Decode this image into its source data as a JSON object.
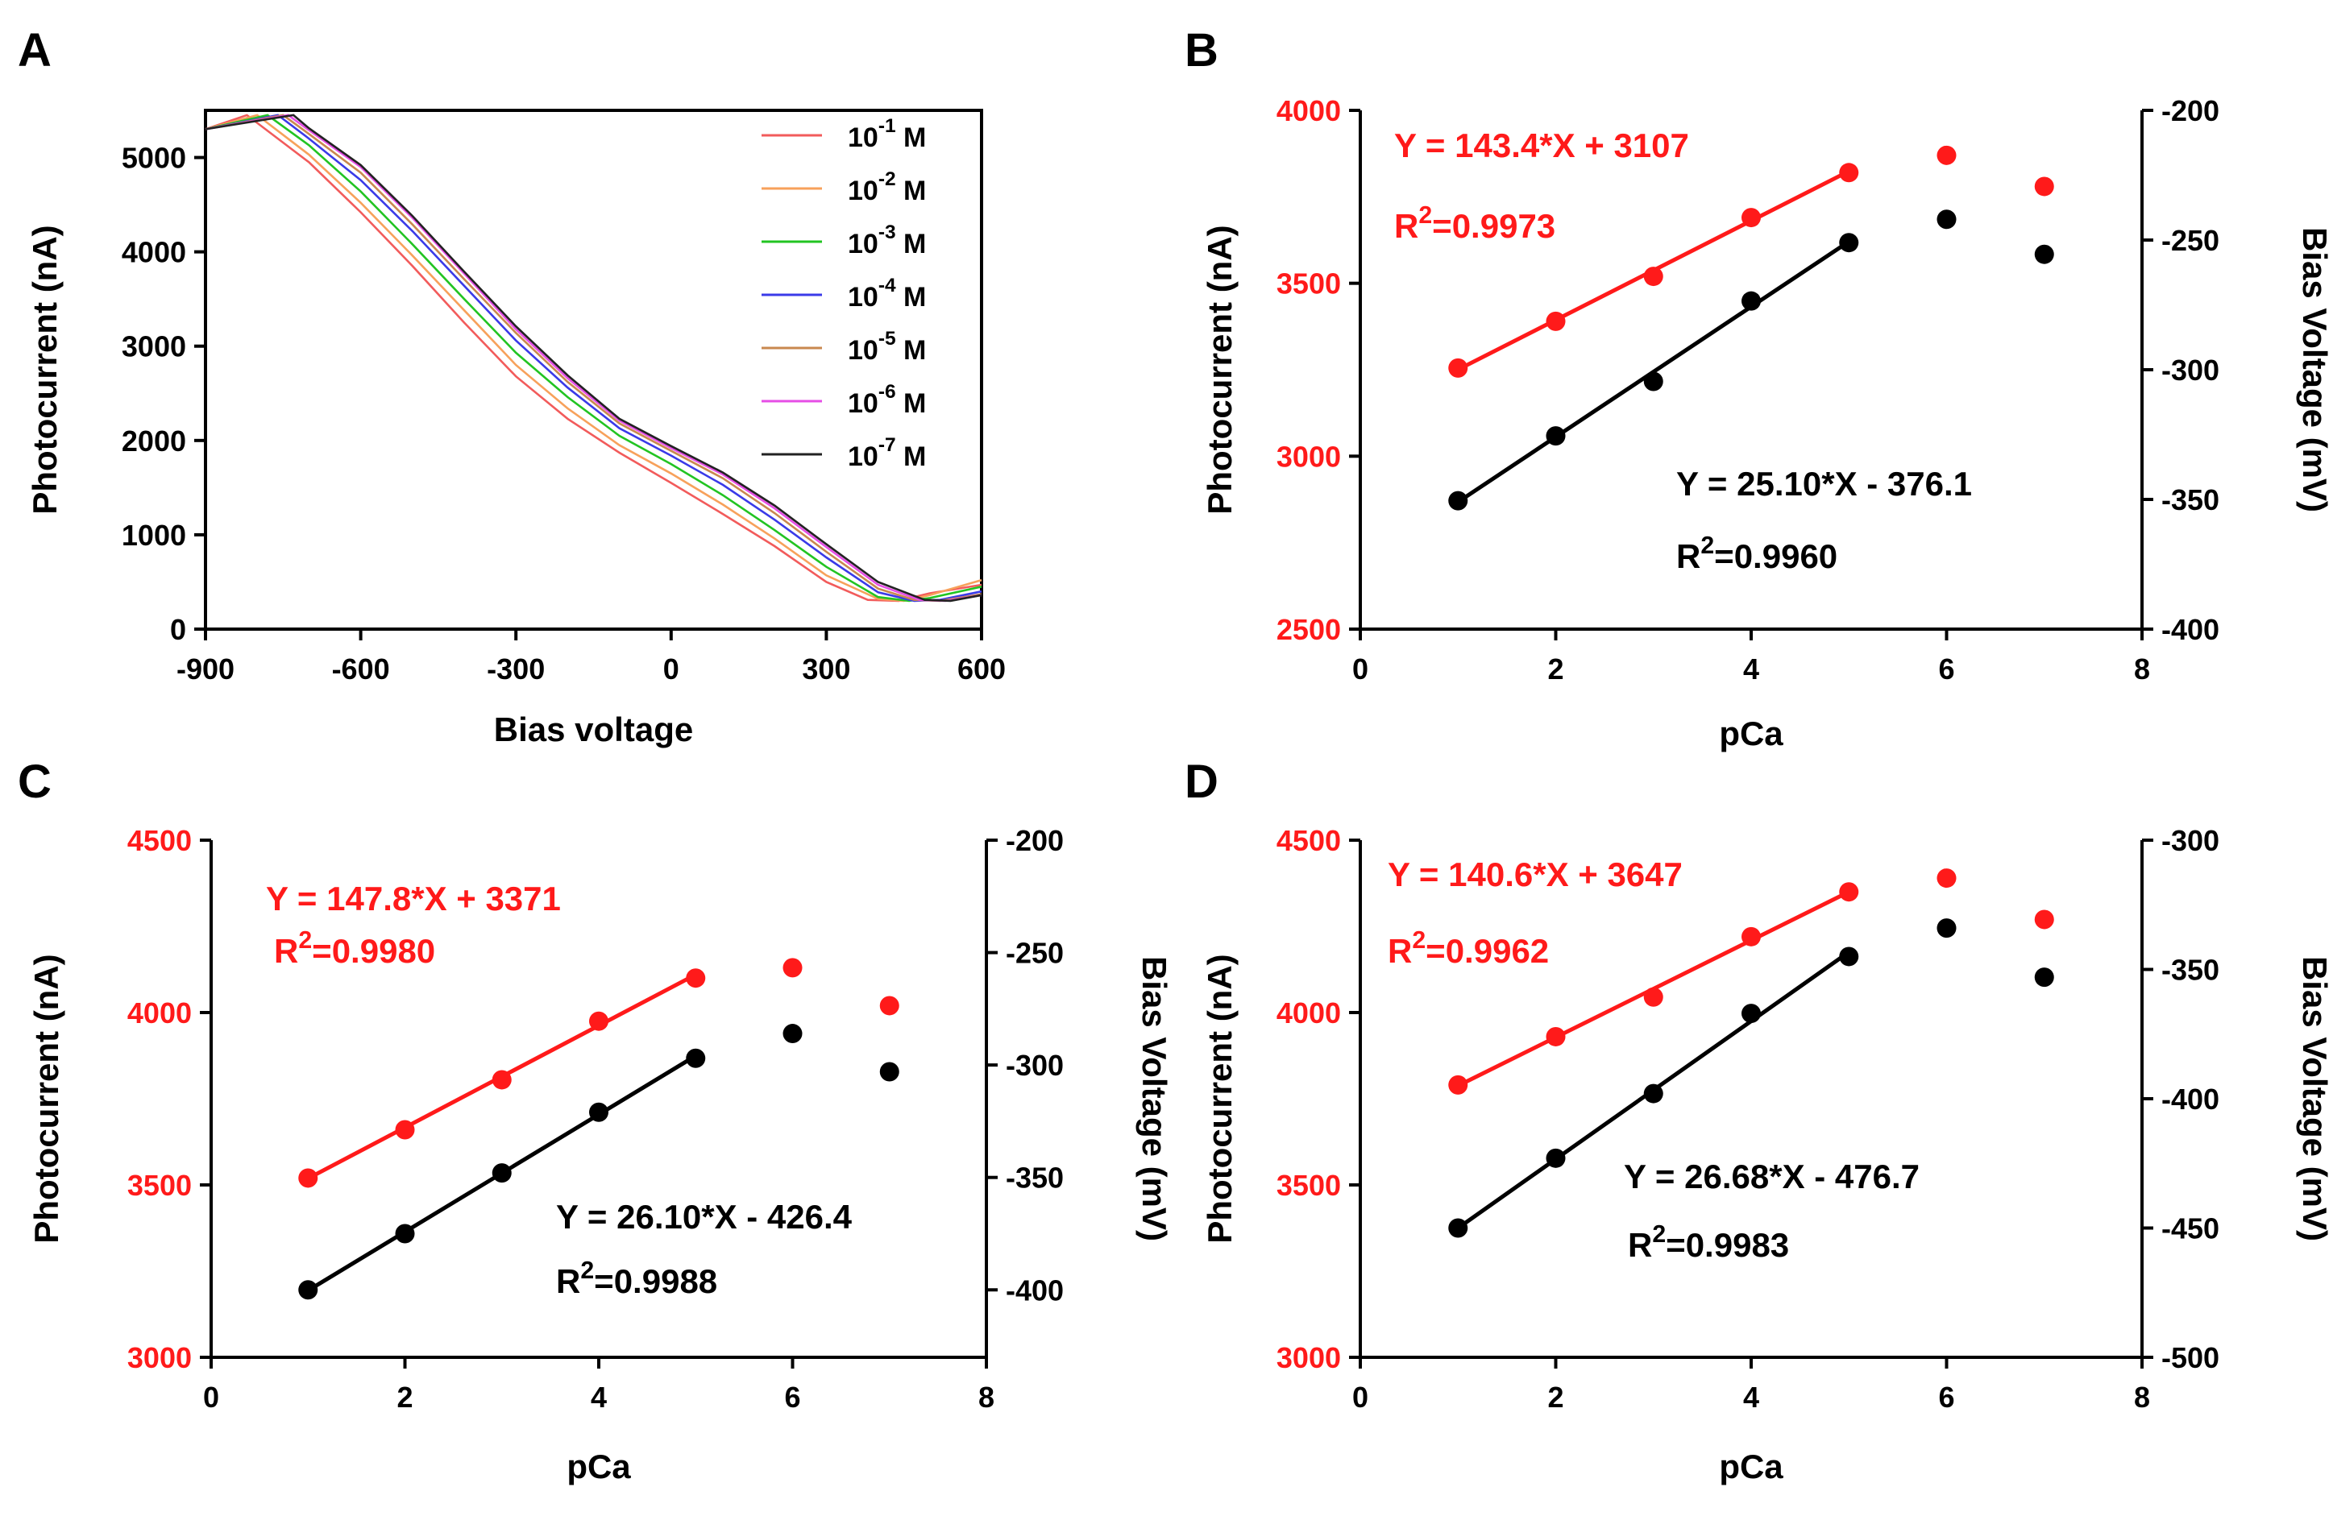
{
  "chart_data": [
    {
      "id": "A",
      "type": "line",
      "panel_label": "A",
      "xlabel": "Bias voltage",
      "ylabel": "Photocurrent (nA)",
      "xlim": [
        -900,
        600
      ],
      "ylim": [
        0,
        5500
      ],
      "xticks": [
        -900,
        -600,
        -300,
        0,
        300,
        600
      ],
      "yticks": [
        0,
        1000,
        2000,
        3000,
        4000,
        5000
      ],
      "legend_position": "top-right",
      "series": [
        {
          "name": "10-1 M",
          "base": "10",
          "exp": "-1",
          "unit": "M",
          "color": "#f25b5b",
          "x": [
            -900,
            -820,
            -700,
            -600,
            -500,
            -400,
            -300,
            -200,
            -100,
            0,
            100,
            200,
            300,
            380,
            440,
            500,
            600
          ],
          "y": [
            5300,
            5450,
            4950,
            4420,
            3850,
            3250,
            2680,
            2230,
            1870,
            1550,
            1220,
            880,
            500,
            310,
            300,
            380,
            470
          ]
        },
        {
          "name": "10-2 M",
          "base": "10",
          "exp": "-2",
          "unit": "M",
          "color": "#f7a15b",
          "x": [
            -900,
            -800,
            -700,
            -600,
            -500,
            -400,
            -300,
            -200,
            -100,
            0,
            100,
            200,
            300,
            400,
            450,
            500,
            600
          ],
          "y": [
            5300,
            5450,
            5030,
            4520,
            3960,
            3380,
            2800,
            2340,
            1950,
            1650,
            1320,
            960,
            570,
            320,
            300,
            360,
            520
          ]
        },
        {
          "name": "10-3 M",
          "base": "10",
          "exp": "-3",
          "unit": "M",
          "color": "#22c422",
          "x": [
            -900,
            -780,
            -700,
            -600,
            -500,
            -400,
            -300,
            -200,
            -100,
            0,
            100,
            200,
            300,
            400,
            460,
            500,
            600
          ],
          "y": [
            5300,
            5450,
            5130,
            4640,
            4080,
            3500,
            2930,
            2460,
            2050,
            1750,
            1420,
            1050,
            660,
            340,
            300,
            330,
            450
          ]
        },
        {
          "name": "10-4 M",
          "base": "10",
          "exp": "-4",
          "unit": "M",
          "color": "#3a3ae8",
          "x": [
            -900,
            -760,
            -700,
            -600,
            -500,
            -400,
            -300,
            -200,
            -100,
            0,
            100,
            200,
            300,
            400,
            470,
            520,
            600
          ],
          "y": [
            5300,
            5450,
            5200,
            4760,
            4220,
            3640,
            3060,
            2560,
            2130,
            1840,
            1530,
            1160,
            760,
            390,
            300,
            310,
            400
          ]
        },
        {
          "name": "10-5 M",
          "base": "10",
          "exp": "-5",
          "unit": "M",
          "color": "#c9884f",
          "x": [
            -900,
            -750,
            -700,
            -600,
            -500,
            -400,
            -300,
            -200,
            -100,
            0,
            100,
            200,
            300,
            400,
            470,
            520,
            600
          ],
          "y": [
            5300,
            5450,
            5250,
            4840,
            4290,
            3710,
            3140,
            2620,
            2180,
            1890,
            1600,
            1230,
            820,
            430,
            310,
            300,
            370
          ]
        },
        {
          "name": "10-6 M",
          "base": "10",
          "exp": "-6",
          "unit": "M",
          "color": "#e64ee6",
          "x": [
            -900,
            -740,
            -700,
            -600,
            -500,
            -400,
            -300,
            -200,
            -100,
            0,
            100,
            200,
            300,
            400,
            480,
            530,
            600
          ],
          "y": [
            5300,
            5450,
            5290,
            4900,
            4360,
            3770,
            3180,
            2660,
            2210,
            1920,
            1640,
            1280,
            870,
            470,
            310,
            300,
            360
          ]
        },
        {
          "name": "10-7 M",
          "base": "10",
          "exp": "-7",
          "unit": "M",
          "color": "#222222",
          "x": [
            -900,
            -730,
            -700,
            -600,
            -500,
            -400,
            -300,
            -200,
            -100,
            0,
            100,
            200,
            300,
            400,
            490,
            540,
            600
          ],
          "y": [
            5300,
            5450,
            5310,
            4920,
            4380,
            3790,
            3210,
            2690,
            2230,
            1940,
            1660,
            1310,
            900,
            500,
            310,
            300,
            360
          ]
        }
      ]
    },
    {
      "id": "B",
      "type": "scatter",
      "panel_label": "B",
      "xlabel": "pCa",
      "ylabel_left": "Photocurrent (nA)",
      "ylabel_right": "Bias Voltage (mV)",
      "xlim": [
        0,
        8
      ],
      "ylim_left": [
        2500,
        4000
      ],
      "ylim_right": [
        -400,
        -200
      ],
      "xticks": [
        0,
        2,
        4,
        6,
        8
      ],
      "yticks_left": [
        2500,
        3000,
        3500,
        4000
      ],
      "yticks_right": [
        -400,
        -350,
        -300,
        -250,
        -200
      ],
      "series": [
        {
          "name": "Photocurrent",
          "axis": "left",
          "color": "#ff1a1a",
          "x": [
            1,
            2,
            3,
            4,
            5,
            6,
            7
          ],
          "y": [
            3255,
            3390,
            3520,
            3690,
            3820,
            3870,
            3780
          ],
          "fit_range": [
            1,
            5
          ],
          "slope": 143.4,
          "intercept": 3107,
          "equation": "Y = 143.4*X + 3107",
          "r2_value": "=0.9973"
        },
        {
          "name": "Bias Voltage",
          "axis": "right",
          "color": "#000000",
          "x": [
            1,
            2,
            3,
            4,
            5,
            6,
            7
          ],
          "y": [
            -350.5,
            -325.5,
            -304.5,
            -273.5,
            -251,
            -242,
            -255.5
          ],
          "fit_range": [
            1,
            5
          ],
          "slope": 25.1,
          "intercept": -376.1,
          "equation": "Y = 25.10*X - 376.1",
          "r2_value": "=0.9960"
        }
      ]
    },
    {
      "id": "C",
      "type": "scatter",
      "panel_label": "C",
      "xlabel": "pCa",
      "ylabel_left": "Photocurrent (nA)",
      "ylabel_right": "Bias Voltage (mV)",
      "xlim": [
        0,
        8
      ],
      "ylim_left": [
        3000,
        4500
      ],
      "ylim_right": [
        -430,
        -200
      ],
      "xticks": [
        0,
        2,
        4,
        6,
        8
      ],
      "yticks_left": [
        3000,
        3500,
        4000,
        4500
      ],
      "yticks_right": [
        -400,
        -350,
        -300,
        -250,
        -200
      ],
      "series": [
        {
          "name": "Photocurrent",
          "axis": "left",
          "color": "#ff1a1a",
          "x": [
            1,
            2,
            3,
            4,
            5,
            6,
            7
          ],
          "y": [
            3520,
            3660,
            3805,
            3975,
            4100,
            4130,
            4020
          ],
          "fit_range": [
            1,
            5
          ],
          "slope": 147.8,
          "intercept": 3371,
          "equation": "Y = 147.8*X + 3371",
          "r2_value": "=0.9980"
        },
        {
          "name": "Bias Voltage",
          "axis": "right",
          "color": "#000000",
          "x": [
            1,
            2,
            3,
            4,
            5,
            6,
            7
          ],
          "y": [
            -400,
            -375,
            -348,
            -321,
            -297,
            -286,
            -303
          ],
          "fit_range": [
            1,
            5
          ],
          "slope": 26.1,
          "intercept": -426.4,
          "equation": "Y = 26.10*X - 426.4",
          "r2_value": "=0.9988"
        }
      ]
    },
    {
      "id": "D",
      "type": "scatter",
      "panel_label": "D",
      "xlabel": "pCa",
      "ylabel_left": "Photocurrent (nA)",
      "ylabel_right": "Bias Voltage (mV)",
      "xlim": [
        0,
        8
      ],
      "ylim_left": [
        3000,
        4500
      ],
      "ylim_right": [
        -500,
        -300
      ],
      "xticks": [
        0,
        2,
        4,
        6,
        8
      ],
      "yticks_left": [
        3000,
        3500,
        4000,
        4500
      ],
      "yticks_right": [
        -500,
        -450,
        -400,
        -350,
        -300
      ],
      "series": [
        {
          "name": "Photocurrent",
          "axis": "left",
          "color": "#ff1a1a",
          "x": [
            1,
            2,
            3,
            4,
            5,
            6,
            7
          ],
          "y": [
            3790,
            3930,
            4045,
            4220,
            4350,
            4390,
            4270
          ],
          "fit_range": [
            1,
            5
          ],
          "slope": 140.6,
          "intercept": 3647,
          "equation": "Y = 140.6*X + 3647",
          "r2_value": "=0.9962"
        },
        {
          "name": "Bias Voltage",
          "axis": "right",
          "color": "#000000",
          "x": [
            1,
            2,
            3,
            4,
            5,
            6,
            7
          ],
          "y": [
            -450,
            -423,
            -398,
            -367,
            -345,
            -334,
            -353
          ],
          "fit_range": [
            1,
            5
          ],
          "slope": 26.68,
          "intercept": -476.7,
          "equation": "Y = 26.68*X - 476.7",
          "r2_value": "=0.9983"
        }
      ]
    }
  ],
  "r2": {
    "base": "R",
    "exp": "2"
  }
}
